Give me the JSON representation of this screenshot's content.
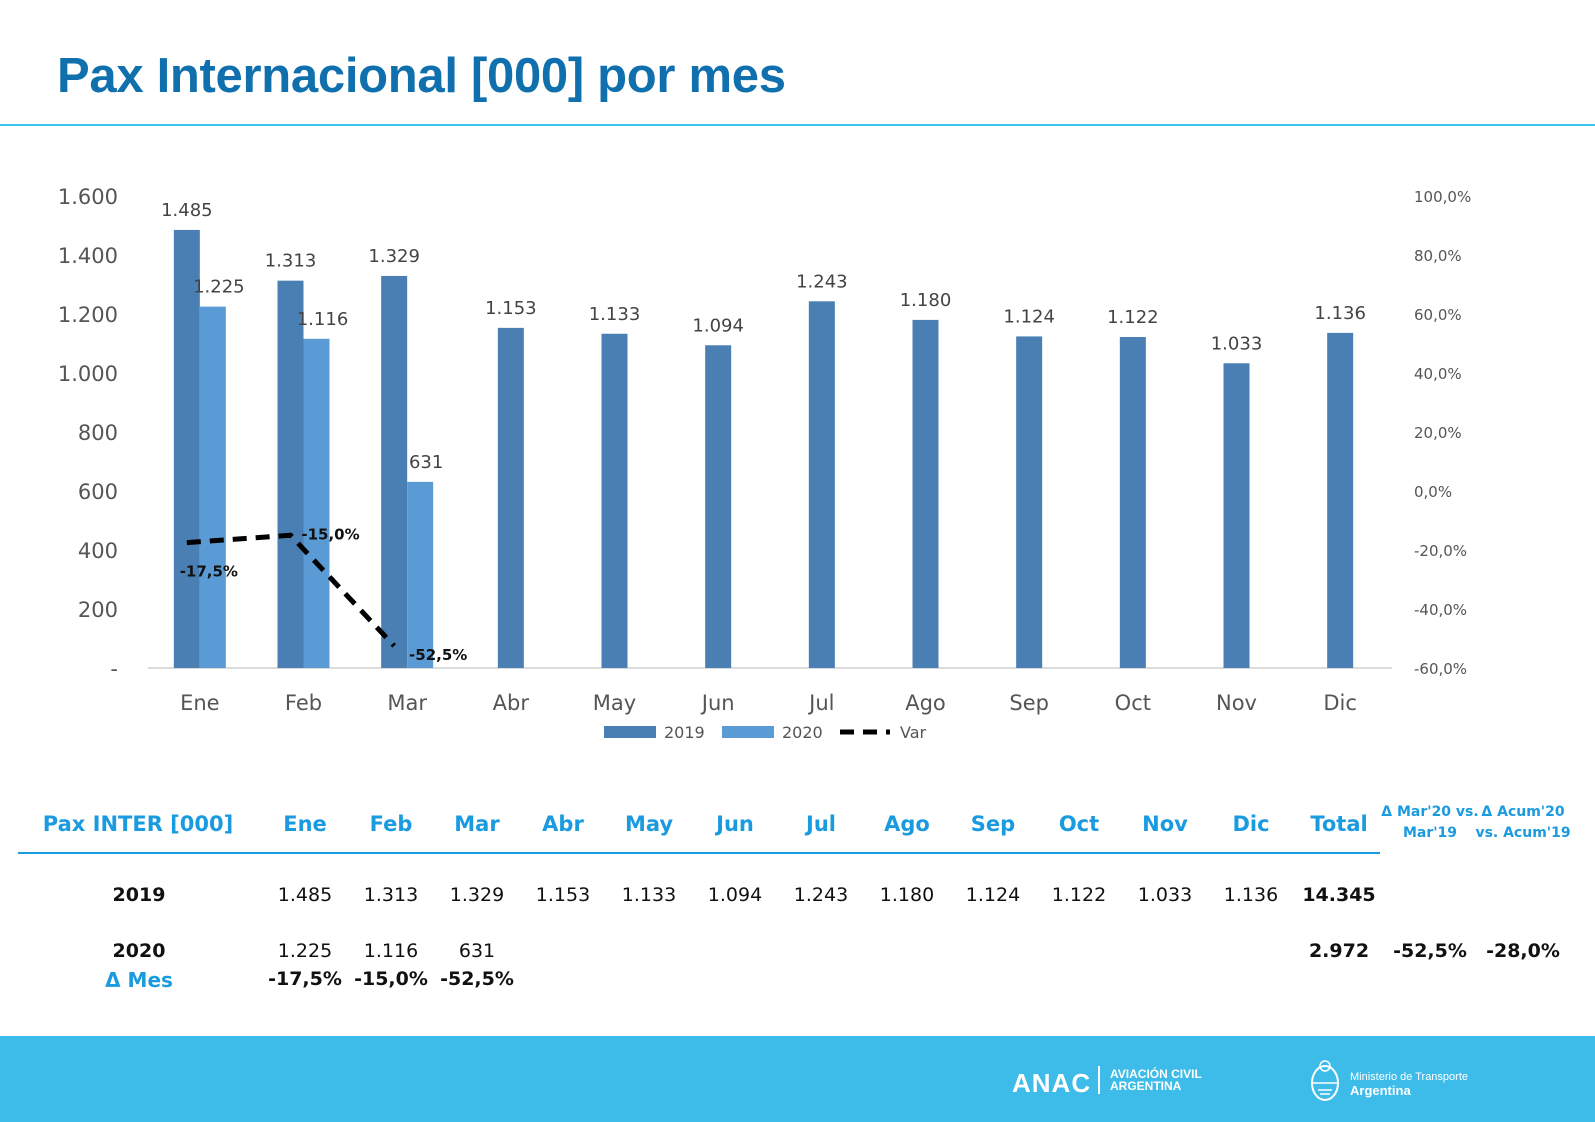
{
  "page": {
    "title": "Pax Internacional [000] por mes"
  },
  "chart_data": {
    "type": "bar",
    "categories": [
      "Ene",
      "Feb",
      "Mar",
      "Abr",
      "May",
      "Jun",
      "Jul",
      "Ago",
      "Sep",
      "Oct",
      "Nov",
      "Dic"
    ],
    "series": [
      {
        "name": "2019",
        "type": "bar",
        "axis": "left",
        "color": "#4a7fb3",
        "values": [
          1485,
          1313,
          1329,
          1153,
          1133,
          1094,
          1243,
          1180,
          1124,
          1122,
          1033,
          1136
        ],
        "labels": [
          "1.485",
          "1.313",
          "1.329",
          "1.153",
          "1.133",
          "1.094",
          "1.243",
          "1.180",
          "1.124",
          "1.122",
          "1.033",
          "1.136"
        ]
      },
      {
        "name": "2020",
        "type": "bar",
        "axis": "left",
        "color": "#5b9bd5",
        "values": [
          1225,
          1116,
          631,
          null,
          null,
          null,
          null,
          null,
          null,
          null,
          null,
          null
        ],
        "labels": [
          "1.225",
          "1.116",
          "631"
        ]
      },
      {
        "name": "Var",
        "type": "line",
        "axis": "right",
        "color": "#000000",
        "dash": true,
        "values": [
          -17.5,
          -15.0,
          -52.5,
          null,
          null,
          null,
          null,
          null,
          null,
          null,
          null,
          null
        ],
        "labels": [
          "-17,5%",
          "-15,0%",
          "-52,5%"
        ]
      }
    ],
    "ylim": [
      0,
      1600
    ],
    "y_ticks": [
      0,
      200,
      400,
      600,
      800,
      1000,
      1200,
      1400,
      1600
    ],
    "y_tick_labels": [
      "-",
      "200",
      "400",
      "600",
      "800",
      "1.000",
      "1.200",
      "1.400",
      "1.600"
    ],
    "y2lim": [
      -60,
      100
    ],
    "y2_ticks": [
      -60,
      -40,
      -20,
      0,
      20,
      40,
      60,
      80,
      100
    ],
    "y2_tick_labels": [
      "-60,0%",
      "-40,0%",
      "-20,0%",
      "0,0%",
      "20,0%",
      "40,0%",
      "60,0%",
      "80,0%",
      "100,0%"
    ],
    "xlabel": "",
    "ylabel": "",
    "legend": "bottom",
    "grid": false
  },
  "table": {
    "header_label": "Pax INTER [000]",
    "months": [
      "Ene",
      "Feb",
      "Mar",
      "Abr",
      "May",
      "Jun",
      "Jul",
      "Ago",
      "Sep",
      "Oct",
      "Nov",
      "Dic"
    ],
    "total_label": "Total",
    "delta_mar_label_1": "Δ Mar'20 vs.",
    "delta_mar_label_2": "Mar'19",
    "delta_acum_label_1": "Δ Acum'20",
    "delta_acum_label_2": "vs. Acum'19",
    "rows": [
      {
        "label": "2019",
        "values": [
          "1.485",
          "1.313",
          "1.329",
          "1.153",
          "1.133",
          "1.094",
          "1.243",
          "1.180",
          "1.124",
          "1.122",
          "1.033",
          "1.136"
        ],
        "total": "14.345",
        "delta_mar": "",
        "delta_acum": ""
      },
      {
        "label": "2020",
        "values": [
          "1.225",
          "1.116",
          "631",
          "",
          "",
          "",
          "",
          "",
          "",
          "",
          "",
          ""
        ],
        "total": "2.972",
        "delta_mar": "-52,5%",
        "delta_acum": "-28,0%"
      }
    ],
    "delta_row": {
      "label": "Δ Mes",
      "values": [
        "-17,5%",
        "-15,0%",
        "-52,5%"
      ]
    }
  },
  "footer": {
    "anac_logo": "ANAC",
    "anac_sub_1": "AVIACIÓN CIVIL",
    "anac_sub_2": "ARGENTINA",
    "ministry_1": "Ministerio de Transporte",
    "ministry_2": "Argentina",
    "background_color": "#3dbbe9"
  }
}
